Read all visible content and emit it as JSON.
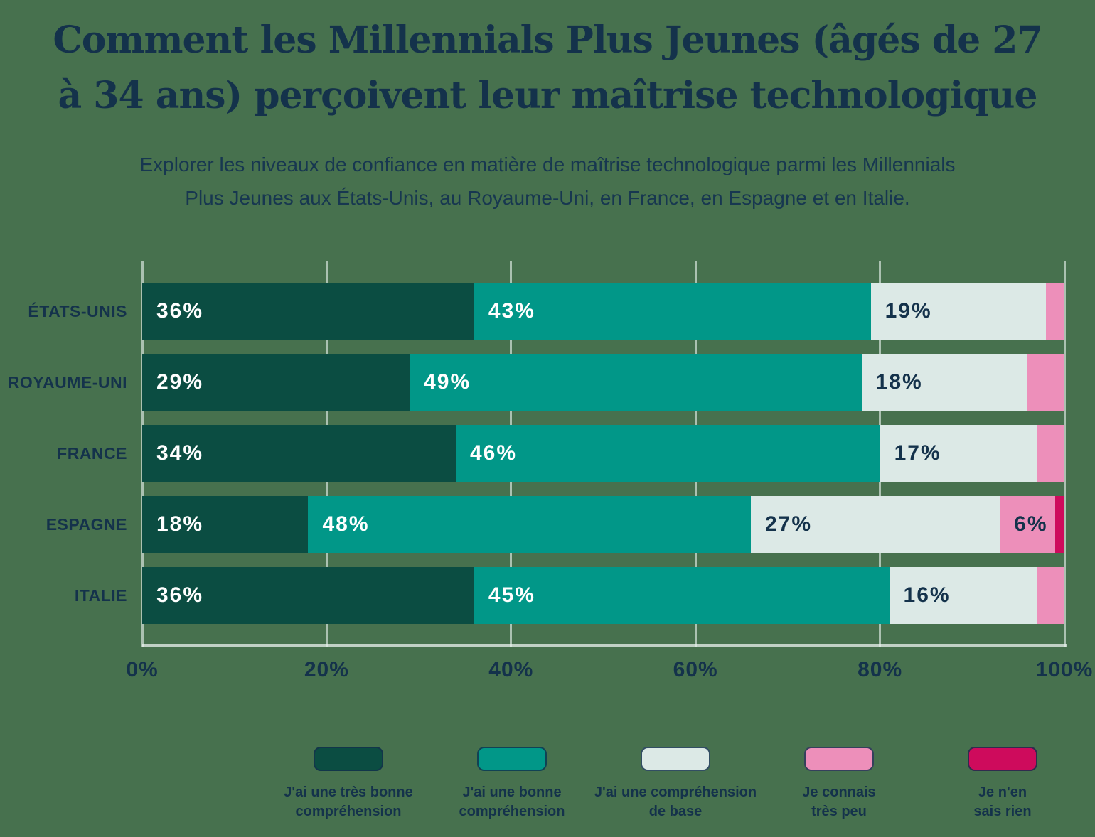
{
  "title": {
    "line1": "Comment les Millennials Plus Jeunes (âgés de 27",
    "line2": "à 34 ans) perçoivent leur maîtrise technologique"
  },
  "subtitle": {
    "line1": "Explorer les niveaux de confiance en matière de maîtrise technologique parmi les Millennials",
    "line2": "Plus Jeunes aux États-Unis, au Royaume-Uni, en France, en Espagne et en Italie."
  },
  "colors": {
    "background": "#47714E",
    "text_navy": "#14324B",
    "white": "#FFFFFF",
    "gridline": "#E9F2EF"
  },
  "chart_data": {
    "type": "bar",
    "stacked": true,
    "orientation": "horizontal",
    "grid": true,
    "legend_position": "bottom",
    "xlim": [
      0,
      100
    ],
    "x_ticks": [
      "0%",
      "20%",
      "40%",
      "60%",
      "80%",
      "100%"
    ],
    "categories": [
      "ÉTATS-UNIS",
      "ROYAUME-UNI",
      "FRANCE",
      "ESPAGNE",
      "ITALIE"
    ],
    "series": [
      {
        "name": "J'ai une très bonne compréhension",
        "legend_lines": [
          "J'ai une très bonne",
          "compréhension"
        ],
        "color": "#0B4D42",
        "label_color": "#FFFFFF",
        "values": [
          36,
          29,
          34,
          18,
          36
        ],
        "labels": [
          "36%",
          "29%",
          "34%",
          "18%",
          "36%"
        ]
      },
      {
        "name": "J'ai une bonne compréhension",
        "legend_lines": [
          "J'ai une bonne",
          "compréhension"
        ],
        "color": "#019788",
        "label_color": "#FFFFFF",
        "values": [
          43,
          49,
          46,
          48,
          45
        ],
        "labels": [
          "43%",
          "49%",
          "46%",
          "48%",
          "45%"
        ]
      },
      {
        "name": "J'ai une compréhension de base",
        "legend_lines": [
          "J'ai une compréhension",
          "de base"
        ],
        "color": "#DCE9E6",
        "label_color": "#14324B",
        "values": [
          19,
          18,
          17,
          27,
          16
        ],
        "labels": [
          "19%",
          "18%",
          "17%",
          "27%",
          "16%"
        ]
      },
      {
        "name": "Je connais très peu",
        "legend_lines": [
          "Je connais",
          "très peu"
        ],
        "color": "#ED8FBA",
        "label_color": "#14324B",
        "values": [
          2,
          4,
          3,
          6,
          3
        ],
        "labels": [
          "",
          "",
          "",
          "6%",
          ""
        ]
      },
      {
        "name": "Je n'en sais rien",
        "legend_lines": [
          "Je n'en",
          "sais rien"
        ],
        "color": "#CE0B5C",
        "label_color": "#FFFFFF",
        "values": [
          0,
          0,
          0,
          1,
          0
        ],
        "labels": [
          "",
          "",
          "",
          "",
          ""
        ]
      }
    ]
  }
}
